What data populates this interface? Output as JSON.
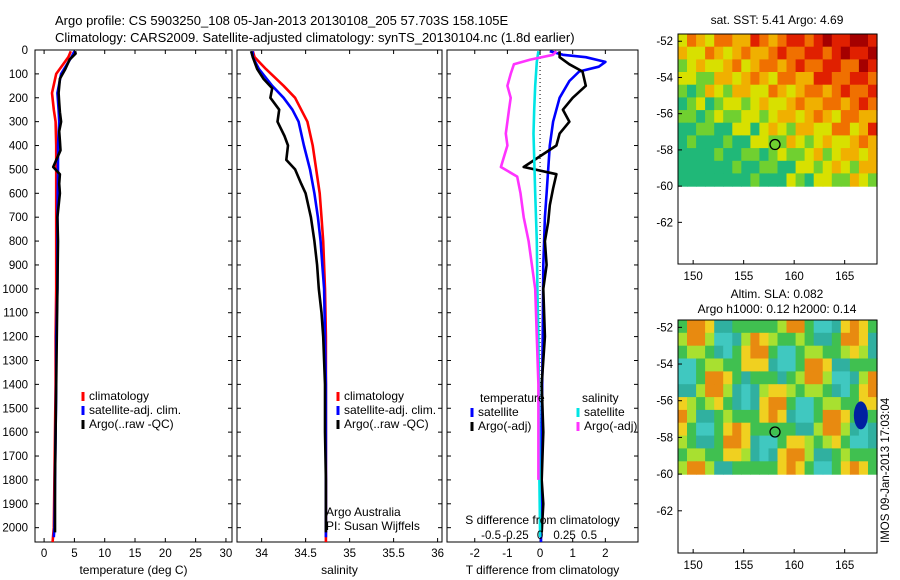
{
  "header": {
    "line1": "Argo profile: CS 5903250_108 05-Jan-2013 20130108_205 57.703S 158.105E",
    "line2": "Climatology: CARS2009. Satellite-adjusted climatology: synTS_20130104.nc (1.8d earlier)"
  },
  "colors": {
    "climatology": "#ff0000",
    "satellite": "#0000ff",
    "argo": "#000000",
    "sat_salinity": "#00e5e5",
    "argo_salinity_diff": "#ff33ff"
  },
  "depth_axis": {
    "ticks": [
      0,
      100,
      200,
      300,
      400,
      500,
      600,
      700,
      800,
      900,
      1000,
      1100,
      1200,
      1300,
      1400,
      1500,
      1600,
      1700,
      1800,
      1900,
      2000
    ],
    "ylim": [
      0,
      2060
    ]
  },
  "chart_data": [
    {
      "id": "temperature",
      "type": "line",
      "xlabel": "temperature (deg C)",
      "xlim": [
        -1.5,
        31
      ],
      "xticks": [
        0,
        5,
        10,
        15,
        20,
        25,
        30
      ],
      "legend": [
        "climatology",
        "satellite-adj. clim.",
        "Argo(..raw -QC)"
      ],
      "series": [
        {
          "name": "climatology",
          "color": "#ff0000",
          "x": [
            4.4,
            4.0,
            2.0,
            1.3,
            1.6,
            1.9,
            2.0,
            2.0,
            2.0,
            2.0,
            1.9,
            1.9,
            1.8,
            1.7,
            1.6,
            1.4
          ],
          "y": [
            5,
            30,
            100,
            180,
            250,
            300,
            400,
            500,
            700,
            1000,
            1200,
            1400,
            1600,
            1800,
            2000,
            2060
          ]
        },
        {
          "name": "satellite-adj. clim.",
          "color": "#0000ff",
          "x": [
            5.0,
            4.5,
            2.8,
            2.2,
            2.4,
            2.5,
            2.3,
            2.3,
            2.2,
            2.2,
            2.0,
            2.0,
            1.9,
            1.8,
            1.7,
            1.6
          ],
          "y": [
            5,
            30,
            100,
            180,
            250,
            300,
            400,
            500,
            700,
            1000,
            1200,
            1400,
            1600,
            1800,
            2000,
            2040
          ]
        },
        {
          "name": "Argo(..raw -QC)",
          "color": "#000000",
          "x": [
            5.1,
            5.2,
            4.2,
            3.5,
            2.6,
            2.4,
            2.5,
            2.6,
            2.8,
            2.5,
            2.6,
            2.7,
            1.5,
            2.6,
            2.5,
            2.6,
            2.2,
            2.3,
            2.2,
            2.1,
            2.0,
            1.9,
            1.8,
            1.8
          ],
          "y": [
            5,
            15,
            40,
            80,
            120,
            180,
            220,
            260,
            300,
            340,
            380,
            420,
            490,
            520,
            560,
            600,
            700,
            800,
            1000,
            1200,
            1400,
            1600,
            1800,
            2020
          ]
        }
      ]
    },
    {
      "id": "salinity",
      "type": "line",
      "xlabel": "salinity",
      "xlim": [
        33.72,
        36.05
      ],
      "xticks": [
        34,
        34.5,
        35,
        35.5,
        36
      ],
      "legend": [
        "climatology",
        "satellite-adj. clim.",
        "Argo(..raw -QC)"
      ],
      "notes": [
        "Argo Australia",
        "PI: Susan Wijffels"
      ],
      "series": [
        {
          "name": "climatology",
          "color": "#ff0000",
          "x": [
            33.9,
            33.92,
            34.05,
            34.25,
            34.38,
            34.45,
            34.52,
            34.58,
            34.62,
            34.66,
            34.68,
            34.7,
            34.71,
            34.72,
            34.73,
            34.73,
            34.73,
            34.73,
            34.73
          ],
          "y": [
            5,
            30,
            80,
            150,
            200,
            250,
            300,
            400,
            500,
            600,
            700,
            800,
            900,
            1000,
            1200,
            1400,
            1600,
            1800,
            2060
          ]
        },
        {
          "name": "satellite-adj. clim.",
          "color": "#0000ff",
          "x": [
            33.9,
            33.9,
            33.97,
            34.12,
            34.25,
            34.35,
            34.42,
            34.48,
            34.55,
            34.6,
            34.64,
            34.67,
            34.69,
            34.71,
            34.72,
            34.73,
            34.73,
            34.73,
            34.73
          ],
          "y": [
            5,
            30,
            80,
            150,
            200,
            250,
            300,
            400,
            500,
            600,
            700,
            800,
            900,
            1000,
            1200,
            1400,
            1600,
            1800,
            2040
          ]
        },
        {
          "name": "Argo(..raw -QC)",
          "color": "#000000",
          "x": [
            33.88,
            33.9,
            33.95,
            34.02,
            34.12,
            34.1,
            34.2,
            34.18,
            34.26,
            34.3,
            34.28,
            34.38,
            34.45,
            34.5,
            34.56,
            34.6,
            34.63,
            34.65,
            34.68,
            34.7,
            34.72,
            34.72,
            34.73,
            34.73
          ],
          "y": [
            5,
            30,
            80,
            120,
            160,
            200,
            250,
            300,
            360,
            400,
            460,
            500,
            560,
            600,
            700,
            800,
            900,
            1000,
            1100,
            1200,
            1400,
            1600,
            1800,
            2020
          ]
        }
      ]
    },
    {
      "id": "difference",
      "type": "line",
      "xlabel": "T difference from climatology",
      "xlabel_top": "S difference from climatology",
      "xlim": [
        -2.85,
        3.0
      ],
      "xticks_bottom": [
        {
          "v": -2,
          "label": "-2"
        },
        {
          "v": -1,
          "label": "-1"
        },
        {
          "v": 0,
          "label": "0"
        },
        {
          "v": 1,
          "label": "1"
        },
        {
          "v": 2,
          "label": "2"
        }
      ],
      "xticks_top": [
        {
          "v": -1.5,
          "label": "-0.5"
        },
        {
          "v": -0.75,
          "label": "-0.25"
        },
        {
          "v": 0,
          "label": "0"
        },
        {
          "v": 0.75,
          "label": "0.25"
        },
        {
          "v": 1.5,
          "label": "0.5"
        }
      ],
      "legend_groups": [
        {
          "title": "temperature",
          "items": [
            "satellite",
            "Argo(-adj)"
          ]
        },
        {
          "title": "salinity",
          "items": [
            "satellite",
            "Argo(-adj)"
          ]
        }
      ],
      "series": [
        {
          "name": "satellite (temperature)",
          "color": "#0000ff",
          "x": [
            0.3,
            0.7,
            1.4,
            2.0,
            1.8,
            1.2,
            0.9,
            0.6,
            0.4,
            0.3,
            0.25,
            0.2,
            0.15,
            0.1,
            0.08,
            0.05,
            0.03
          ],
          "y": [
            5,
            20,
            30,
            50,
            70,
            90,
            130,
            200,
            300,
            400,
            500,
            600,
            700,
            900,
            1200,
            1600,
            2060
          ]
        },
        {
          "name": "Argo(-adj) (temperature)",
          "color": "#000000",
          "x": [
            0.6,
            0.6,
            0.9,
            1.3,
            1.4,
            1.0,
            0.7,
            0.9,
            0.6,
            0.5,
            -0.5,
            0.5,
            0.4,
            0.3,
            0.25,
            0.15,
            0.2,
            0.1,
            0.15,
            0.05,
            0.1,
            0.05,
            0.1,
            0.05
          ],
          "y": [
            5,
            30,
            60,
            90,
            150,
            200,
            250,
            300,
            350,
            400,
            490,
            520,
            580,
            650,
            720,
            800,
            900,
            1000,
            1200,
            1400,
            1600,
            1800,
            1900,
            2020
          ]
        },
        {
          "name": "satellite (salinity)",
          "color": "#00e5e5",
          "x": [
            -0.05,
            -0.1,
            -0.15,
            -0.18,
            -0.2,
            -0.18,
            -0.15,
            -0.1,
            -0.08,
            -0.05,
            -0.03,
            -0.02,
            0.0
          ],
          "y": [
            5,
            50,
            150,
            250,
            350,
            450,
            600,
            800,
            1000,
            1200,
            1500,
            1800,
            2040
          ]
        },
        {
          "name": "Argo(-adj) (salinity)",
          "color": "#ff33ff",
          "x": [
            0.5,
            0.4,
            -0.3,
            -0.8,
            -0.9,
            -1.0,
            -0.9,
            -0.95,
            -1.0,
            -1.05,
            -1.0,
            -1.2,
            -0.7,
            -0.6,
            -0.5,
            -0.35,
            -0.25,
            -0.15,
            -0.1,
            -0.05,
            -0.05,
            -0.05
          ],
          "y": [
            5,
            20,
            40,
            60,
            100,
            150,
            200,
            250,
            300,
            350,
            400,
            490,
            530,
            600,
            700,
            800,
            900,
            1000,
            1200,
            1400,
            1600,
            1800
          ]
        }
      ]
    },
    {
      "id": "sst_map",
      "type": "heatmap",
      "title": "sat. SST: 5.41  Argo: 4.69",
      "xlim": [
        148.5,
        168.2
      ],
      "ylim": [
        -64.3,
        -51.6
      ],
      "xticks": [
        150,
        155,
        160,
        165
      ],
      "yticks": [
        -52,
        -54,
        -56,
        -58,
        -60,
        -62
      ],
      "data_extent_lat": [
        -60,
        -51.6
      ],
      "argo_position": {
        "lon": 158.105,
        "lat": -57.703
      }
    },
    {
      "id": "sla_map",
      "type": "heatmap",
      "title": "Altim. SLA: 0.082",
      "subtitle": "Argo h1000: 0.12  h2000: 0.14",
      "xlim": [
        148.5,
        168.2
      ],
      "ylim": [
        -64.3,
        -51.6
      ],
      "xticks": [
        150,
        155,
        160,
        165
      ],
      "yticks": [
        -52,
        -54,
        -56,
        -58,
        -60,
        -62
      ],
      "data_extent_lat": [
        -60,
        -51.6
      ],
      "argo_position": {
        "lon": 158.105,
        "lat": -57.703
      }
    }
  ],
  "footer": {
    "stamp": "IMOS 09-Jan-2013 17:03:04"
  }
}
